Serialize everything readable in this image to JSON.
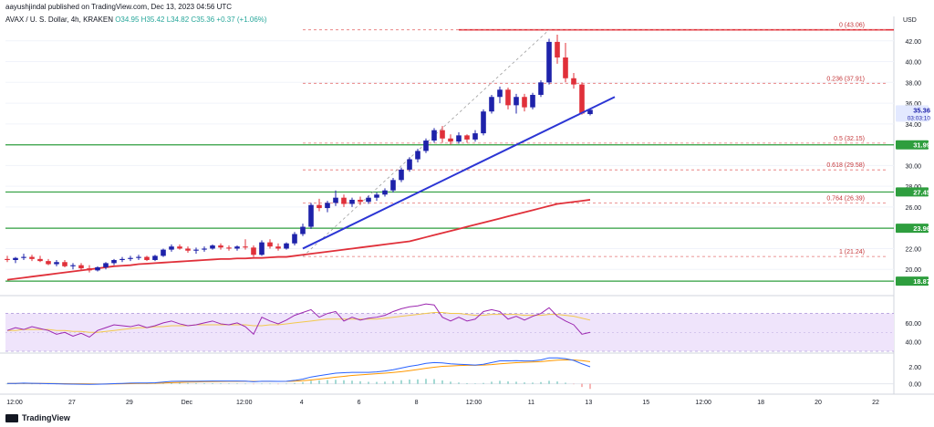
{
  "header": {
    "published": "aayushjindal published on TradingView.com, Dec 13, 2023 04:56 UTC"
  },
  "symbol": {
    "name": "AVAX / U. S. Dollar, 4h, KRAKEN",
    "ohlc": "O34.95 H35.42 L34.82 C35.36 +0.37 (+1.06%)"
  },
  "footer": {
    "brand": "TradingView"
  },
  "colors": {
    "bull": "#1e22aa",
    "bear": "#e0303a",
    "trendline": "#2b35d4",
    "ma": "#e0303a",
    "hline": "#2e9e3e",
    "fib_dash": "#e57373",
    "rsi_band": "#efe4fb",
    "rsi_line": "#9c27b0"
  },
  "chart_data": {
    "type": "candlestick",
    "currency": "USD",
    "ylim": [
      18,
      44
    ],
    "price_axis_ticks": [
      42,
      40,
      38,
      36,
      34,
      30,
      28,
      26,
      22,
      20
    ],
    "x_axis_labels": [
      "12:00",
      "27",
      "29",
      "Dec",
      "12:00",
      "4",
      "6",
      "8",
      "12:00",
      "11",
      "13",
      "15",
      "12:00",
      "18",
      "20",
      "22"
    ],
    "candles": [
      {
        "o": 21.0,
        "h": 21.3,
        "l": 20.7,
        "c": 20.9
      },
      {
        "o": 20.9,
        "h": 21.2,
        "l": 20.6,
        "c": 21.1
      },
      {
        "o": 21.1,
        "h": 21.5,
        "l": 20.9,
        "c": 21.2
      },
      {
        "o": 21.2,
        "h": 21.4,
        "l": 20.8,
        "c": 21.0
      },
      {
        "o": 21.0,
        "h": 21.3,
        "l": 20.7,
        "c": 20.8
      },
      {
        "o": 20.8,
        "h": 21.0,
        "l": 20.4,
        "c": 20.5
      },
      {
        "o": 20.5,
        "h": 20.9,
        "l": 20.3,
        "c": 20.7
      },
      {
        "o": 20.7,
        "h": 20.9,
        "l": 20.2,
        "c": 20.3
      },
      {
        "o": 20.3,
        "h": 20.6,
        "l": 20.0,
        "c": 20.4
      },
      {
        "o": 20.4,
        "h": 20.6,
        "l": 19.9,
        "c": 20.1
      },
      {
        "o": 20.1,
        "h": 20.4,
        "l": 19.7,
        "c": 19.9
      },
      {
        "o": 19.9,
        "h": 20.3,
        "l": 19.8,
        "c": 20.2
      },
      {
        "o": 20.2,
        "h": 20.7,
        "l": 20.0,
        "c": 20.6
      },
      {
        "o": 20.6,
        "h": 21.0,
        "l": 20.4,
        "c": 20.9
      },
      {
        "o": 20.9,
        "h": 21.2,
        "l": 20.7,
        "c": 21.0
      },
      {
        "o": 21.0,
        "h": 21.3,
        "l": 20.8,
        "c": 21.1
      },
      {
        "o": 21.1,
        "h": 21.4,
        "l": 20.9,
        "c": 21.2
      },
      {
        "o": 21.2,
        "h": 21.3,
        "l": 20.8,
        "c": 20.9
      },
      {
        "o": 20.9,
        "h": 21.4,
        "l": 20.8,
        "c": 21.3
      },
      {
        "o": 21.3,
        "h": 22.0,
        "l": 21.2,
        "c": 21.9
      },
      {
        "o": 21.9,
        "h": 22.4,
        "l": 21.7,
        "c": 22.2
      },
      {
        "o": 22.2,
        "h": 22.4,
        "l": 21.9,
        "c": 22.0
      },
      {
        "o": 22.0,
        "h": 22.2,
        "l": 21.6,
        "c": 21.8
      },
      {
        "o": 21.8,
        "h": 22.1,
        "l": 21.5,
        "c": 21.9
      },
      {
        "o": 21.9,
        "h": 22.2,
        "l": 21.7,
        "c": 22.0
      },
      {
        "o": 22.0,
        "h": 22.4,
        "l": 21.9,
        "c": 22.3
      },
      {
        "o": 22.3,
        "h": 22.5,
        "l": 21.9,
        "c": 22.1
      },
      {
        "o": 22.1,
        "h": 22.3,
        "l": 21.8,
        "c": 22.0
      },
      {
        "o": 22.0,
        "h": 22.3,
        "l": 21.8,
        "c": 22.2
      },
      {
        "o": 22.2,
        "h": 22.9,
        "l": 21.9,
        "c": 22.1
      },
      {
        "o": 22.1,
        "h": 22.3,
        "l": 21.2,
        "c": 21.4
      },
      {
        "o": 21.4,
        "h": 22.8,
        "l": 21.3,
        "c": 22.6
      },
      {
        "o": 22.6,
        "h": 22.9,
        "l": 22.0,
        "c": 22.2
      },
      {
        "o": 22.2,
        "h": 22.5,
        "l": 21.8,
        "c": 22.0
      },
      {
        "o": 22.0,
        "h": 22.6,
        "l": 21.9,
        "c": 22.5
      },
      {
        "o": 22.5,
        "h": 23.6,
        "l": 22.3,
        "c": 23.4
      },
      {
        "o": 23.4,
        "h": 24.4,
        "l": 23.2,
        "c": 24.1
      },
      {
        "o": 24.1,
        "h": 26.4,
        "l": 23.9,
        "c": 26.2
      },
      {
        "o": 26.2,
        "h": 26.8,
        "l": 25.6,
        "c": 25.9
      },
      {
        "o": 25.9,
        "h": 26.6,
        "l": 25.5,
        "c": 26.4
      },
      {
        "o": 26.4,
        "h": 27.6,
        "l": 26.1,
        "c": 26.9
      },
      {
        "o": 26.9,
        "h": 27.2,
        "l": 26.0,
        "c": 26.3
      },
      {
        "o": 26.3,
        "h": 26.9,
        "l": 26.0,
        "c": 26.7
      },
      {
        "o": 26.7,
        "h": 27.0,
        "l": 26.2,
        "c": 26.5
      },
      {
        "o": 26.5,
        "h": 27.1,
        "l": 26.3,
        "c": 26.9
      },
      {
        "o": 26.9,
        "h": 27.4,
        "l": 26.6,
        "c": 27.2
      },
      {
        "o": 27.2,
        "h": 27.8,
        "l": 27.0,
        "c": 27.6
      },
      {
        "o": 27.6,
        "h": 28.8,
        "l": 27.4,
        "c": 28.6
      },
      {
        "o": 28.6,
        "h": 29.8,
        "l": 28.4,
        "c": 29.6
      },
      {
        "o": 29.6,
        "h": 30.8,
        "l": 29.4,
        "c": 30.6
      },
      {
        "o": 30.6,
        "h": 31.6,
        "l": 30.3,
        "c": 31.4
      },
      {
        "o": 31.4,
        "h": 32.6,
        "l": 31.2,
        "c": 32.4
      },
      {
        "o": 32.4,
        "h": 33.6,
        "l": 32.2,
        "c": 33.4
      },
      {
        "o": 33.4,
        "h": 33.8,
        "l": 32.2,
        "c": 32.6
      },
      {
        "o": 32.6,
        "h": 33.0,
        "l": 32.0,
        "c": 32.3
      },
      {
        "o": 32.3,
        "h": 33.2,
        "l": 32.1,
        "c": 32.9
      },
      {
        "o": 32.9,
        "h": 33.0,
        "l": 32.2,
        "c": 32.5
      },
      {
        "o": 32.5,
        "h": 33.4,
        "l": 32.3,
        "c": 33.1
      },
      {
        "o": 33.1,
        "h": 35.4,
        "l": 32.9,
        "c": 35.2
      },
      {
        "o": 35.2,
        "h": 36.8,
        "l": 35.0,
        "c": 36.6
      },
      {
        "o": 36.6,
        "h": 37.6,
        "l": 36.0,
        "c": 37.3
      },
      {
        "o": 37.3,
        "h": 37.5,
        "l": 35.4,
        "c": 35.8
      },
      {
        "o": 35.8,
        "h": 36.9,
        "l": 35.0,
        "c": 36.6
      },
      {
        "o": 36.6,
        "h": 36.9,
        "l": 35.2,
        "c": 35.6
      },
      {
        "o": 35.6,
        "h": 37.0,
        "l": 35.4,
        "c": 36.8
      },
      {
        "o": 36.8,
        "h": 38.2,
        "l": 36.6,
        "c": 38.0
      },
      {
        "o": 38.0,
        "h": 42.2,
        "l": 37.8,
        "c": 41.9
      },
      {
        "o": 41.9,
        "h": 42.6,
        "l": 39.8,
        "c": 40.4
      },
      {
        "o": 40.4,
        "h": 41.8,
        "l": 38.0,
        "c": 38.4
      },
      {
        "o": 38.4,
        "h": 38.9,
        "l": 37.4,
        "c": 37.8
      },
      {
        "o": 37.8,
        "h": 38.0,
        "l": 34.9,
        "c": 35.0
      },
      {
        "o": 34.95,
        "h": 35.42,
        "l": 34.82,
        "c": 35.36
      }
    ],
    "moving_average": [
      19.0,
      19.1,
      19.2,
      19.3,
      19.4,
      19.5,
      19.6,
      19.7,
      19.8,
      19.9,
      20.0,
      20.1,
      20.2,
      20.3,
      20.35,
      20.4,
      20.5,
      20.55,
      20.6,
      20.65,
      20.7,
      20.75,
      20.8,
      20.85,
      20.9,
      20.95,
      21.0,
      21.0,
      21.05,
      21.05,
      21.1,
      21.1,
      21.15,
      21.2,
      21.2,
      21.3,
      21.4,
      21.5,
      21.6,
      21.7,
      21.8,
      21.9,
      22.0,
      22.1,
      22.2,
      22.3,
      22.4,
      22.5,
      22.6,
      22.7,
      22.9,
      23.1,
      23.3,
      23.5,
      23.7,
      23.9,
      24.1,
      24.3,
      24.5,
      24.7,
      24.9,
      25.1,
      25.3,
      25.5,
      25.7,
      25.9,
      26.1,
      26.3,
      26.4,
      26.5,
      26.6,
      26.7
    ],
    "trendline": {
      "from": {
        "index": 36,
        "price": 22.0
      },
      "to": {
        "index": 74,
        "price": 36.6
      }
    },
    "horizontal_lines": [
      31.99,
      27.45,
      23.96,
      18.87
    ],
    "top_line": 43.06,
    "fibonacci": [
      {
        "label": "0 (43.06)",
        "price": 43.06
      },
      {
        "label": "0.236 (37.91)",
        "price": 37.91
      },
      {
        "label": "0.5 (32.15)",
        "price": 32.15
      },
      {
        "label": "0.618 (29.58)",
        "price": 29.58
      },
      {
        "label": "0.764 (26.39)",
        "price": 26.39
      },
      {
        "label": "1 (21.24)",
        "price": 21.24
      }
    ],
    "price_tags": [
      {
        "label": "35.36",
        "sub": "03:03:10",
        "price": 35.36,
        "bg": "#e3e9ff",
        "fg": "#1e22aa"
      },
      {
        "label": "31.99",
        "price": 31.99,
        "bg": "#2e9e3e",
        "fg": "#ffffff"
      },
      {
        "label": "27.45",
        "price": 27.45,
        "bg": "#2e9e3e",
        "fg": "#ffffff"
      },
      {
        "label": "23.96",
        "price": 23.96,
        "bg": "#2e9e3e",
        "fg": "#ffffff"
      },
      {
        "label": "18.87",
        "price": 18.87,
        "bg": "#2e9e3e",
        "fg": "#ffffff"
      }
    ],
    "rsi": {
      "ylim": [
        30,
        85
      ],
      "ticks": [
        60,
        40
      ],
      "band": [
        70,
        30
      ],
      "values": [
        52,
        55,
        53,
        56,
        54,
        52,
        48,
        50,
        46,
        49,
        45,
        52,
        55,
        58,
        57,
        56,
        58,
        55,
        57,
        60,
        62,
        59,
        57,
        58,
        60,
        62,
        59,
        58,
        60,
        56,
        48,
        66,
        62,
        59,
        63,
        68,
        71,
        74,
        66,
        70,
        72,
        62,
        66,
        63,
        65,
        66,
        68,
        72,
        75,
        77,
        78,
        80,
        79,
        66,
        62,
        66,
        62,
        64,
        72,
        74,
        72,
        64,
        67,
        63,
        67,
        70,
        76,
        67,
        62,
        58,
        48,
        50
      ],
      "signal": [
        52,
        52,
        53,
        53,
        53,
        53,
        52,
        52,
        51,
        51,
        50,
        50,
        51,
        52,
        53,
        54,
        55,
        55,
        56,
        56,
        57,
        57,
        57,
        58,
        58,
        58,
        58,
        58,
        58,
        58,
        57,
        57,
        58,
        58,
        59,
        60,
        61,
        62,
        63,
        64,
        64,
        64,
        64,
        64,
        64,
        64,
        65,
        66,
        67,
        68,
        69,
        70,
        71,
        71,
        70,
        70,
        69,
        68,
        68,
        69,
        69,
        69,
        69,
        68,
        68,
        68,
        69,
        69,
        68,
        67,
        65,
        63
      ]
    },
    "macd": {
      "ylim": [
        -1.0,
        3.5
      ],
      "ticks": [
        2.0,
        0.0
      ],
      "line": [
        0.05,
        0.05,
        0.08,
        0.06,
        0.04,
        0.02,
        0.0,
        -0.02,
        -0.03,
        -0.05,
        -0.06,
        -0.05,
        -0.02,
        0.02,
        0.05,
        0.08,
        0.1,
        0.1,
        0.12,
        0.2,
        0.28,
        0.3,
        0.3,
        0.3,
        0.31,
        0.33,
        0.33,
        0.32,
        0.32,
        0.31,
        0.25,
        0.3,
        0.3,
        0.28,
        0.3,
        0.4,
        0.55,
        0.8,
        0.95,
        1.1,
        1.25,
        1.3,
        1.35,
        1.35,
        1.35,
        1.4,
        1.5,
        1.65,
        1.85,
        2.05,
        2.2,
        2.4,
        2.5,
        2.45,
        2.35,
        2.3,
        2.25,
        2.2,
        2.3,
        2.5,
        2.7,
        2.7,
        2.72,
        2.68,
        2.7,
        2.8,
        3.05,
        3.05,
        2.95,
        2.75,
        2.35,
        2.0
      ],
      "signal": [
        0.04,
        0.04,
        0.05,
        0.05,
        0.05,
        0.04,
        0.03,
        0.02,
        0.01,
        0.0,
        -0.01,
        -0.02,
        -0.02,
        -0.01,
        0.0,
        0.02,
        0.04,
        0.05,
        0.07,
        0.1,
        0.14,
        0.17,
        0.2,
        0.22,
        0.24,
        0.26,
        0.27,
        0.28,
        0.29,
        0.3,
        0.29,
        0.29,
        0.29,
        0.29,
        0.29,
        0.31,
        0.36,
        0.45,
        0.55,
        0.66,
        0.78,
        0.88,
        0.98,
        1.05,
        1.12,
        1.18,
        1.25,
        1.33,
        1.43,
        1.55,
        1.68,
        1.82,
        1.95,
        2.05,
        2.1,
        2.15,
        2.17,
        2.18,
        2.2,
        2.26,
        2.35,
        2.42,
        2.48,
        2.52,
        2.56,
        2.6,
        2.7,
        2.78,
        2.82,
        2.8,
        2.72,
        2.6
      ],
      "histogram": [
        0.01,
        0.01,
        0.03,
        0.01,
        -0.01,
        -0.02,
        -0.03,
        -0.04,
        -0.04,
        -0.05,
        -0.05,
        -0.03,
        0.0,
        0.03,
        0.05,
        0.06,
        0.06,
        0.05,
        0.05,
        0.1,
        0.14,
        0.13,
        0.1,
        0.08,
        0.07,
        0.07,
        0.06,
        0.04,
        0.03,
        0.01,
        -0.04,
        0.01,
        0.01,
        -0.01,
        0.01,
        0.09,
        0.19,
        0.35,
        0.4,
        0.44,
        0.47,
        0.42,
        0.37,
        0.3,
        0.23,
        0.22,
        0.25,
        0.32,
        0.42,
        0.5,
        0.52,
        0.58,
        0.55,
        0.4,
        0.25,
        0.15,
        0.08,
        0.02,
        0.1,
        0.24,
        0.35,
        0.28,
        0.24,
        0.16,
        0.14,
        0.2,
        0.35,
        0.27,
        0.13,
        -0.05,
        -0.37,
        -0.6
      ]
    }
  }
}
